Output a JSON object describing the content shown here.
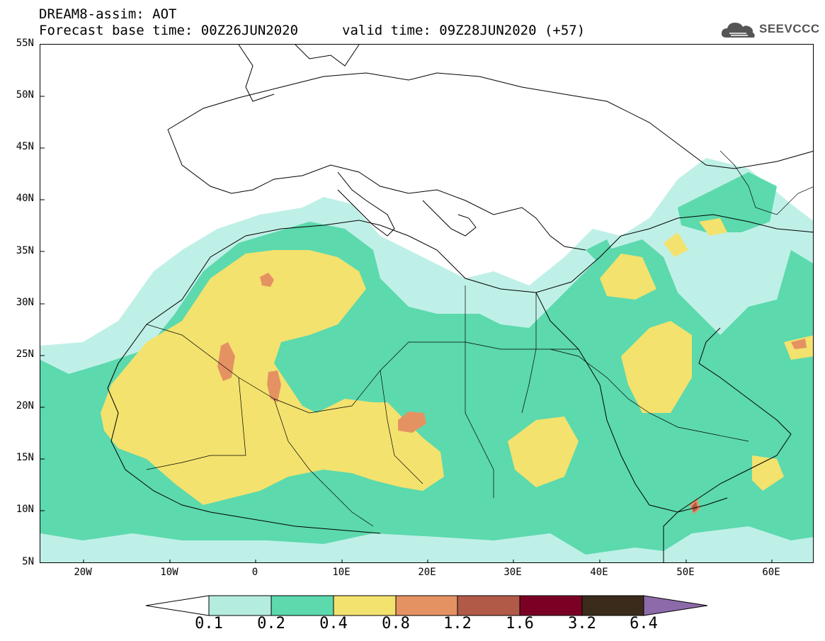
{
  "header": {
    "title": "DREAM8-assim: AOT",
    "base_time": "Forecast base time: 00Z26JUN2020",
    "valid_time": "valid time: 09Z28JUN2020 (+57)"
  },
  "logo": {
    "text": "SEEVCCC",
    "icon": "cloud-icon"
  },
  "lat_labels": [
    "55N",
    "50N",
    "45N",
    "40N",
    "35N",
    "30N",
    "25N",
    "20N",
    "15N",
    "10N",
    "5N"
  ],
  "lon_labels": [
    "20W",
    "10W",
    "0",
    "10E",
    "20E",
    "30E",
    "40E",
    "50E",
    "60E"
  ],
  "legend": {
    "labels": [
      "0.1",
      "0.2",
      "0.4",
      "0.8",
      "1.2",
      "1.6",
      "3.2",
      "6.4"
    ],
    "colors": [
      "#b5ece0",
      "#5cd9ad",
      "#f3e26e",
      "#e59263",
      "#b15a48",
      "#7a0024",
      "#3b2b1b",
      "#8d6bab"
    ]
  },
  "map_colors": {
    "c01": "#bff0e7",
    "c02": "#5cd9ad",
    "c04": "#f3e26e",
    "c08": "#e59263"
  }
}
